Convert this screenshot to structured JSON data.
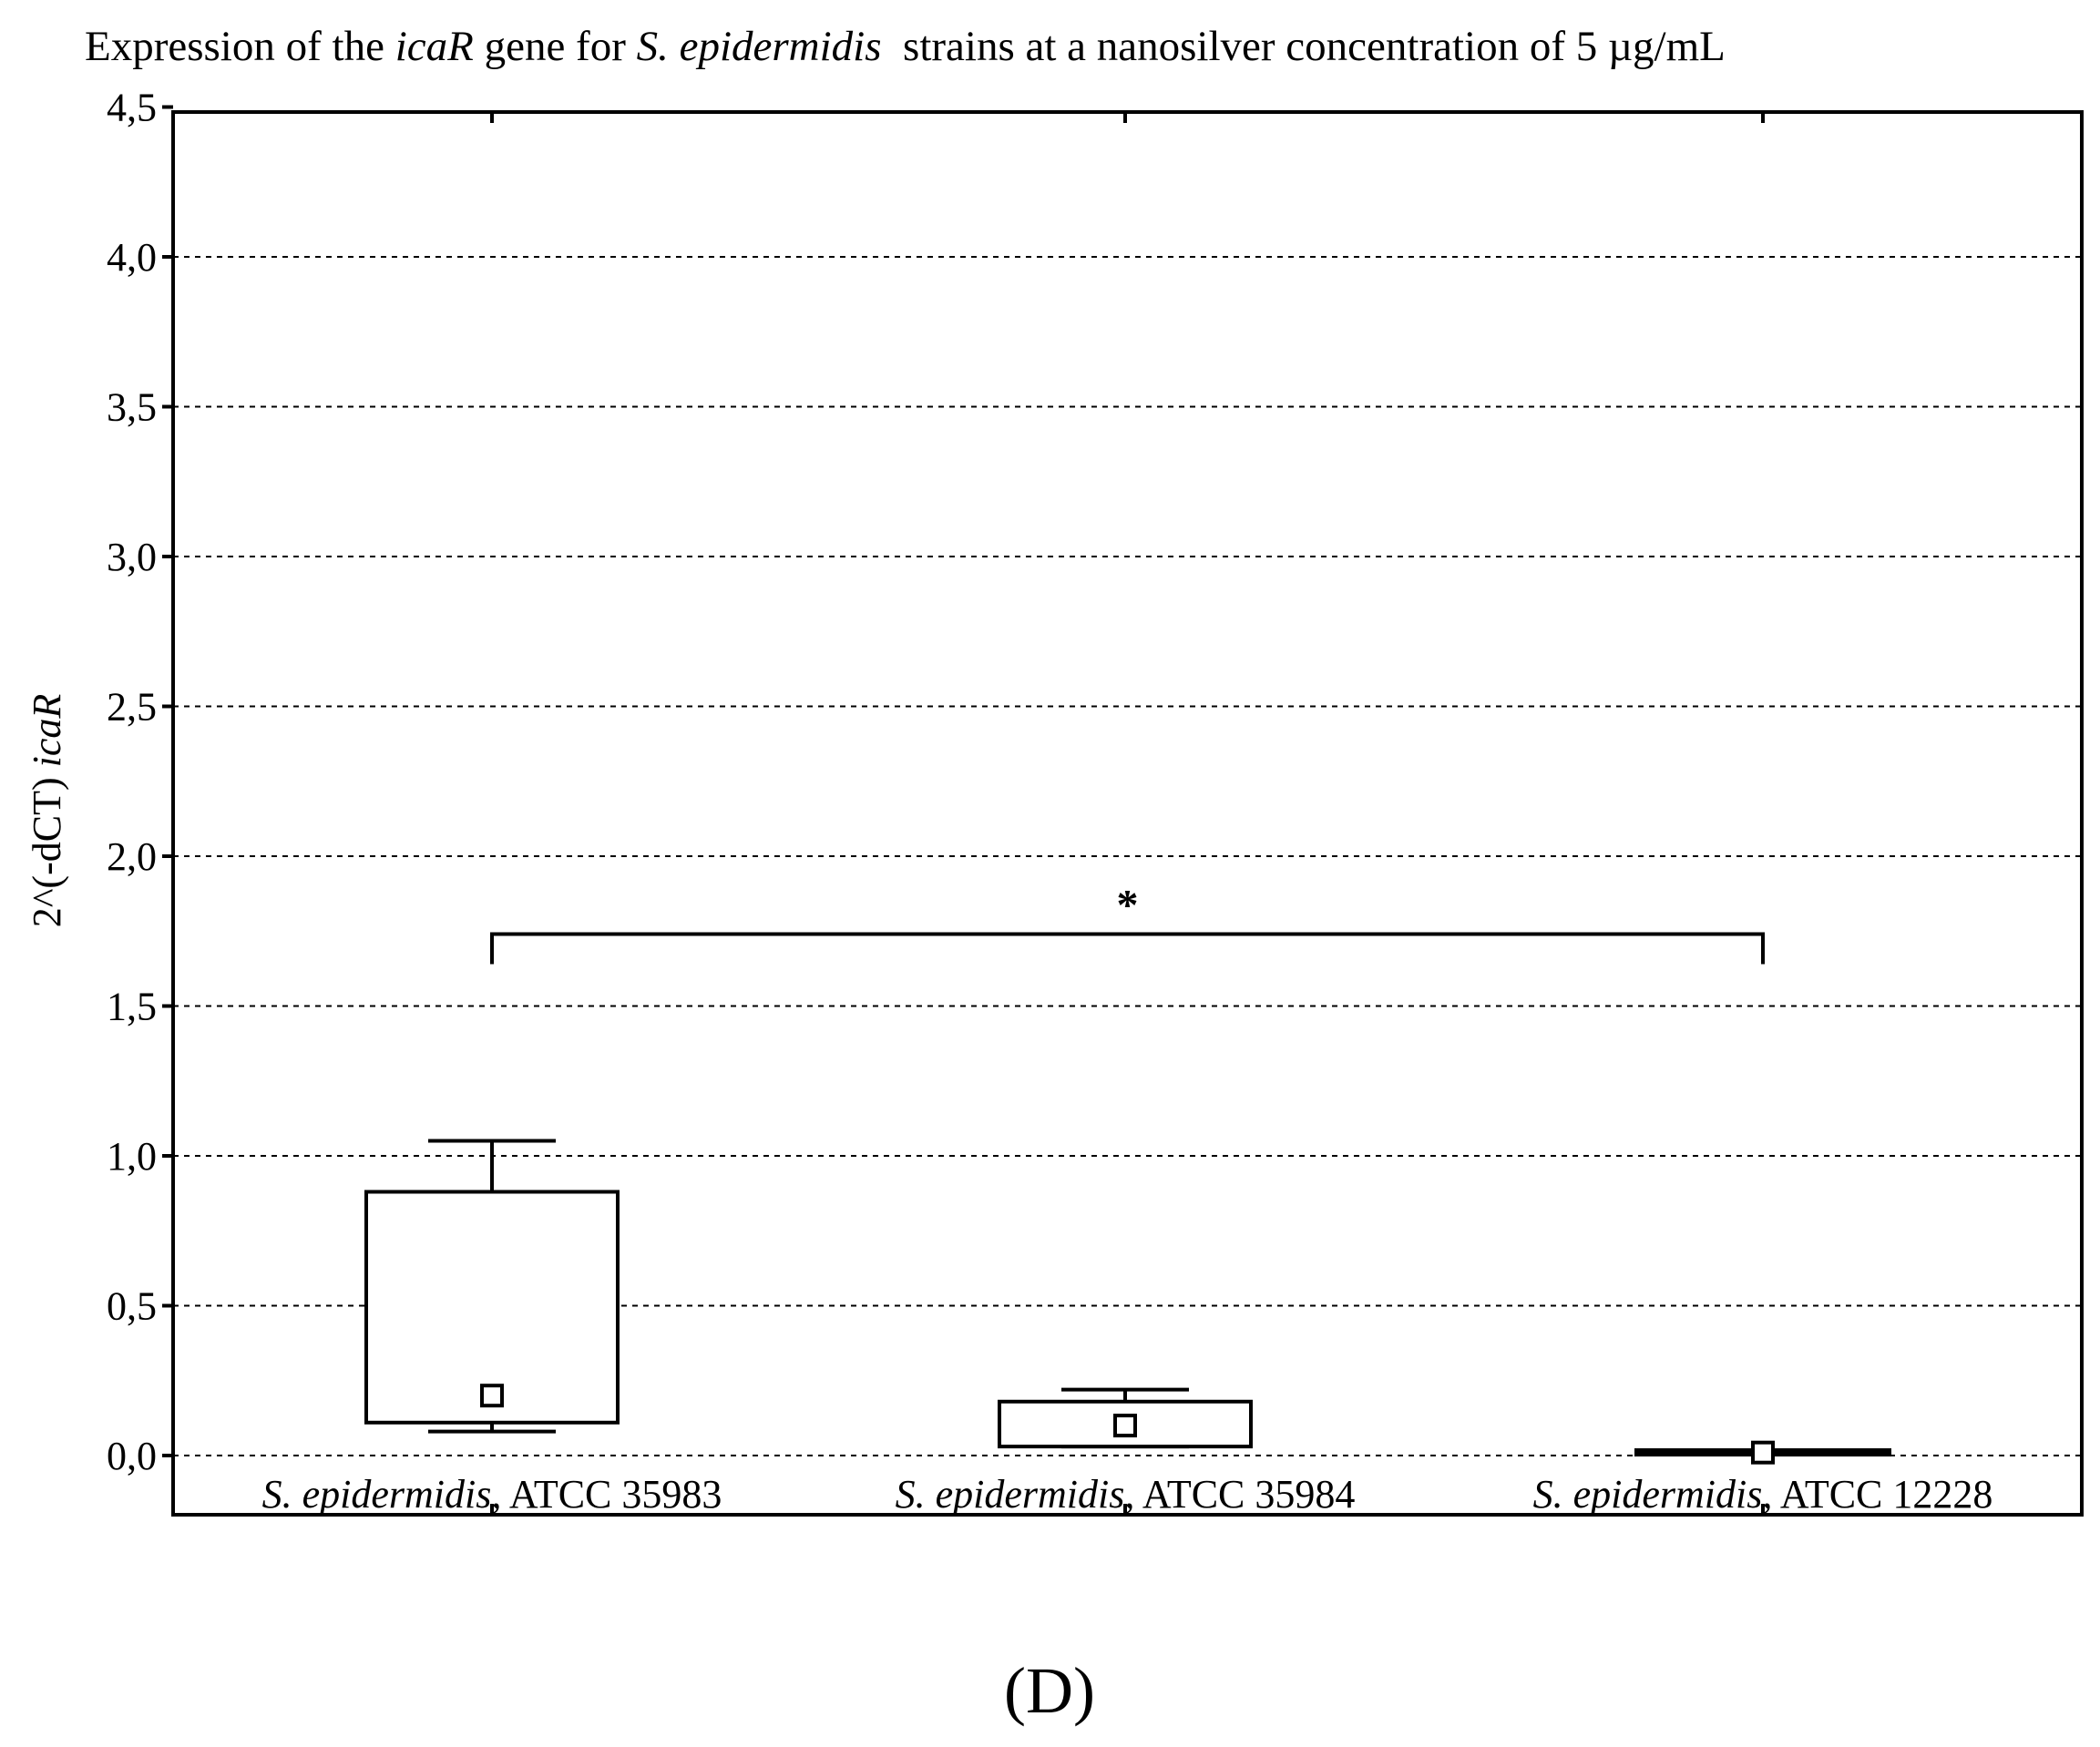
{
  "chart_data": {
    "type": "box",
    "title": {
      "t1": "Expression of the ",
      "t2": "icaR",
      "t3": " gene for ",
      "t4": "S. epidermidis",
      "t5": "  strains at a nanosilver concentration of 5 µg/mL"
    },
    "ylabel": {
      "y1": "2^(-dCT) ",
      "y2": "icaR"
    },
    "ylim": [
      -0.2,
      4.5
    ],
    "yticks": [
      {
        "value": 0.0,
        "label": "0,0"
      },
      {
        "value": 0.5,
        "label": "0,5"
      },
      {
        "value": 1.0,
        "label": "1,0"
      },
      {
        "value": 1.5,
        "label": "1,5"
      },
      {
        "value": 2.0,
        "label": "2,0"
      },
      {
        "value": 2.5,
        "label": "2,5"
      },
      {
        "value": 3.0,
        "label": "3,0"
      },
      {
        "value": 3.5,
        "label": "3,5"
      },
      {
        "value": 4.0,
        "label": "4,0"
      },
      {
        "value": 4.5,
        "label": "4,5"
      }
    ],
    "grid": "horizontal-dashed",
    "categories": [
      {
        "species": "S. epidermidis",
        "strain": ", ATCC 35983"
      },
      {
        "species": "S. epidermidis",
        "strain": ", ATCC 35984"
      },
      {
        "species": "S. epidermidis",
        "strain": ", ATCC 12228"
      }
    ],
    "boxes": [
      {
        "whisker_low": 0.08,
        "q1": 0.11,
        "median": 0.2,
        "q3": 0.88,
        "whisker_high": 1.05
      },
      {
        "whisker_low": 0.03,
        "q1": 0.03,
        "median": 0.1,
        "q3": 0.18,
        "whisker_high": 0.22
      },
      {
        "whisker_low": 0.01,
        "q1": 0.01,
        "median": 0.01,
        "q3": 0.015,
        "whisker_high": 0.015
      }
    ],
    "significance": {
      "from_category": 0,
      "to_category": 2,
      "level": 1.74,
      "drop_to": 1.64,
      "marker": "*"
    },
    "panel_label": "(D)"
  }
}
